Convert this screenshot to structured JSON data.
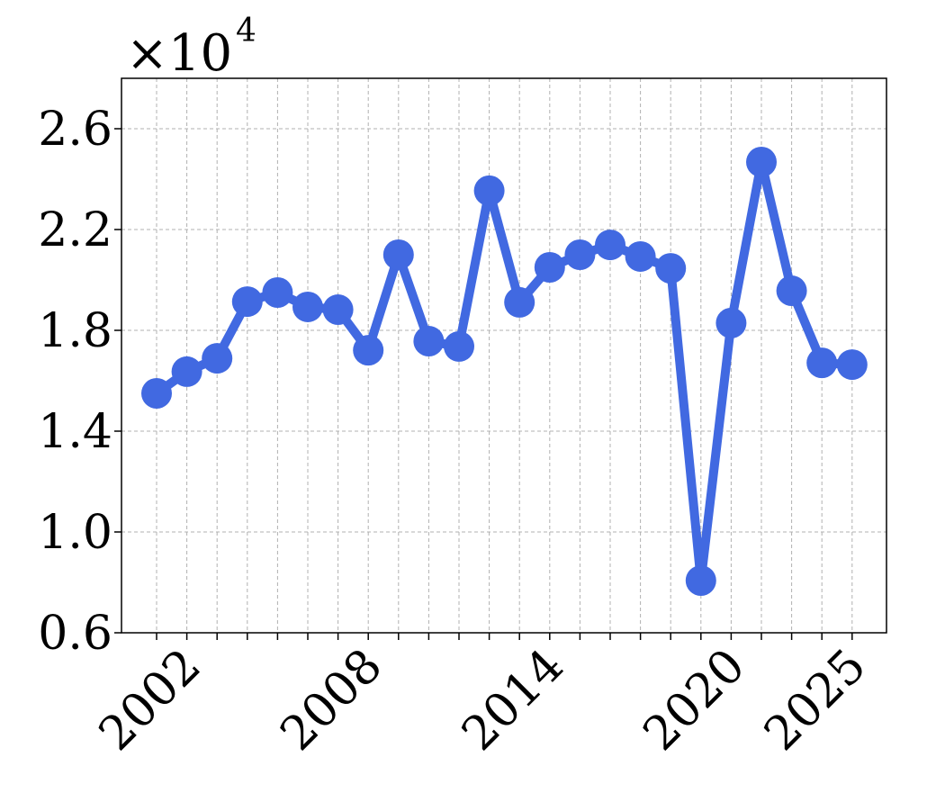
{
  "chart_data": {
    "type": "line",
    "y_multiplier": "×10",
    "y_multiplier_exponent": "4",
    "categories": [
      null,
      "2002",
      null,
      null,
      null,
      null,
      null,
      "2008",
      null,
      null,
      null,
      null,
      null,
      "2014",
      null,
      null,
      null,
      null,
      null,
      "2020",
      null,
      null,
      null,
      "2025"
    ],
    "series": [
      {
        "color": "#4169e1",
        "values": [
          1.55,
          1.636,
          1.689,
          1.914,
          1.95,
          1.893,
          1.882,
          1.721,
          2.1,
          1.757,
          1.736,
          2.354,
          1.911,
          2.05,
          2.1,
          2.139,
          2.093,
          2.046,
          0.807,
          1.829,
          2.468,
          1.957,
          1.671,
          1.664
        ]
      }
    ],
    "ylim": [
      0.6,
      2.8
    ],
    "yticks": [
      0.6,
      {
        "value": 1,
        "label": "1.0"
      },
      1.4,
      1.8,
      2.2,
      2.6
    ],
    "grid": true
  }
}
